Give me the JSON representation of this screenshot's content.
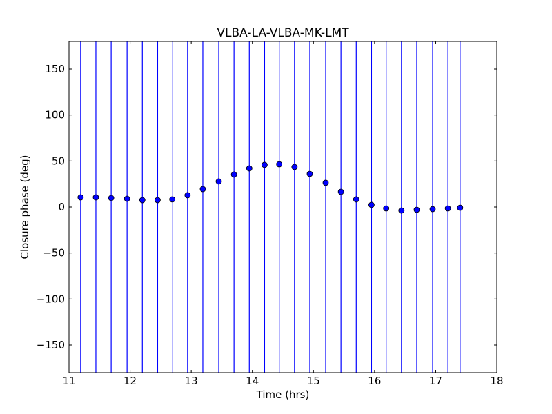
{
  "chart_data": {
    "type": "scatter",
    "title": "VLBA-LA-VLBA-MK-LMT",
    "xlabel": "Time (hrs)",
    "ylabel": "Closure phase (deg)",
    "xlim": [
      11,
      18
    ],
    "ylim": [
      -180,
      180
    ],
    "xticks": [
      "11",
      "12",
      "13",
      "14",
      "15",
      "16",
      "17",
      "18"
    ],
    "yticks": [
      "−150",
      "−100",
      "−50",
      "0",
      "50",
      "100",
      "150"
    ],
    "ytick_values": [
      -150,
      -100,
      -50,
      0,
      50,
      100,
      150
    ],
    "xtick_values": [
      11,
      12,
      13,
      14,
      15,
      16,
      17,
      18
    ],
    "grid": false,
    "series": [
      {
        "name": "closure phase",
        "color": "#0000ff",
        "x": [
          11.19,
          11.44,
          11.69,
          11.95,
          12.2,
          12.45,
          12.69,
          12.94,
          13.19,
          13.45,
          13.7,
          13.95,
          14.2,
          14.44,
          14.69,
          14.94,
          15.2,
          15.45,
          15.7,
          15.95,
          16.19,
          16.44,
          16.69,
          16.95,
          17.2,
          17.4
        ],
        "y": [
          10.5,
          10.5,
          9.8,
          9,
          7.5,
          7.5,
          8.3,
          12.8,
          19.5,
          27.8,
          35.3,
          42,
          45.8,
          46.5,
          43.5,
          36,
          26.3,
          16.5,
          8.3,
          2.3,
          -1.5,
          -3.8,
          -3,
          -2.3,
          -1.5,
          -0.8
        ],
        "yerr": [
          360,
          360,
          360,
          360,
          360,
          360,
          360,
          360,
          360,
          360,
          360,
          360,
          360,
          360,
          360,
          360,
          360,
          360,
          360,
          360,
          360,
          360,
          360,
          360,
          360,
          360
        ]
      }
    ]
  }
}
